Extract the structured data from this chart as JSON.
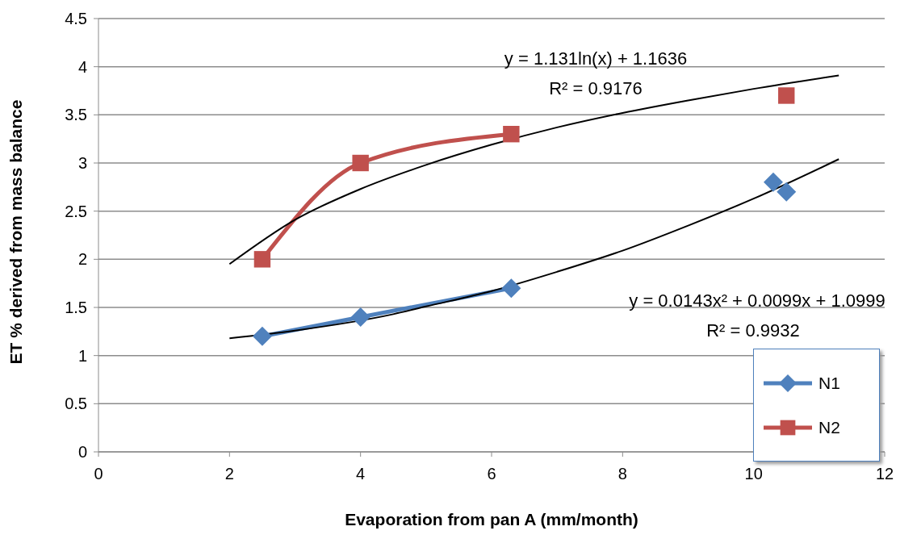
{
  "chart_data": {
    "type": "line",
    "xlabel": "Evaporation from pan A (mm/month)",
    "ylabel": "ET % derived from mass balance",
    "xlim": [
      0,
      12
    ],
    "xticks": [
      0,
      2,
      4,
      6,
      8,
      10,
      12
    ],
    "ylim": [
      0,
      4.5
    ],
    "yticks": [
      0,
      0.5,
      1,
      1.5,
      2,
      2.5,
      3,
      3.5,
      4,
      4.5
    ],
    "grid": "y",
    "legend": "bottom right",
    "series": [
      {
        "name": "N1",
        "type": "line",
        "x": [
          2.5,
          4,
          6.3
        ],
        "values": [
          1.2,
          1.4,
          1.7
        ],
        "color": "#4f81bd",
        "marker": "diamond"
      },
      {
        "type": "scatter",
        "x": [
          10.3,
          10.5
        ],
        "values": [
          2.8,
          2.7
        ],
        "color": "#4f81bd",
        "marker": "diamond"
      },
      {
        "name": "N2",
        "type": "line",
        "x": [
          2.5,
          4,
          6.3
        ],
        "values": [
          2,
          3,
          3.3
        ],
        "color": "#c0504d",
        "marker": "square"
      },
      {
        "type": "scatter",
        "x": [
          10.5
        ],
        "values": [
          3.7
        ],
        "color": "#c0504d",
        "marker": "square"
      },
      {
        "type": "line",
        "x": [
          2,
          3,
          4,
          5,
          6,
          7,
          8,
          9,
          10,
          11.3
        ],
        "values": [
          1.95,
          2.41,
          2.73,
          2.98,
          3.19,
          3.37,
          3.52,
          3.65,
          3.77,
          3.91
        ],
        "color": "#000000",
        "marker": "none"
      },
      {
        "x": [
          2,
          3,
          4.5,
          5,
          6,
          7,
          8,
          9,
          10,
          11.3
        ],
        "values": [
          1.18,
          1.26,
          1.43,
          1.51,
          1.67,
          1.87,
          2.09,
          2.35,
          2.63,
          3.04
        ],
        "color": "#000000",
        "marker": "none"
      }
    ],
    "annotations": [
      "y = 1.131ln(x) + 1.1636",
      "R² = 0.9176",
      "y = 0.0143x² + 0.0099x + 1.0999",
      "R² = 0.9932"
    ]
  }
}
